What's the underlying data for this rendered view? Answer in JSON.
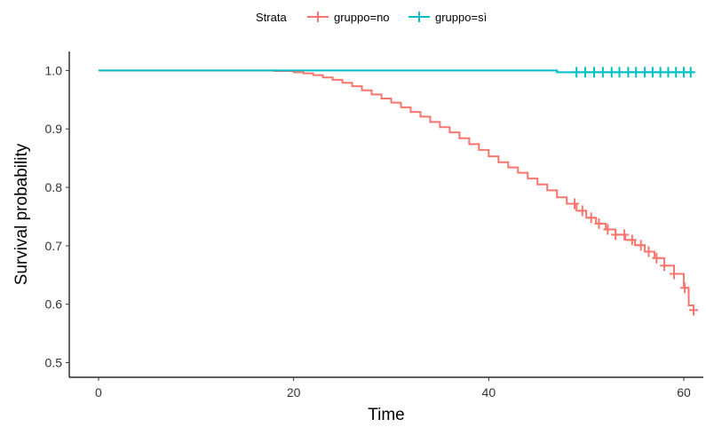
{
  "chart_data": {
    "type": "line",
    "title": "",
    "xlabel": "Time",
    "ylabel": "Survival probability",
    "xlim": [
      -3,
      62
    ],
    "ylim": [
      0.475,
      1.0325
    ],
    "x_ticks": [
      0,
      20,
      40,
      60
    ],
    "y_ticks": [
      0.5,
      0.6,
      0.7,
      0.8,
      0.9,
      1.0
    ],
    "y_tick_labels": [
      "0.5",
      "0.6",
      "0.7",
      "0.8",
      "0.9",
      "1.0"
    ],
    "grid": false,
    "legend": {
      "title": "Strata",
      "position": "top"
    },
    "series": [
      {
        "name": "gruppo=no",
        "color": "#F8766D",
        "step_points": [
          [
            0,
            1.0
          ],
          [
            18,
            1.0
          ],
          [
            18,
            0.999
          ],
          [
            20,
            0.997
          ],
          [
            21,
            0.995
          ],
          [
            22,
            0.992
          ],
          [
            23,
            0.988
          ],
          [
            24,
            0.984
          ],
          [
            25,
            0.979
          ],
          [
            26,
            0.973
          ],
          [
            27,
            0.966
          ],
          [
            28,
            0.959
          ],
          [
            29,
            0.952
          ],
          [
            30,
            0.945
          ],
          [
            31,
            0.937
          ],
          [
            32,
            0.929
          ],
          [
            33,
            0.921
          ],
          [
            34,
            0.912
          ],
          [
            35,
            0.903
          ],
          [
            36,
            0.894
          ],
          [
            37,
            0.884
          ],
          [
            38,
            0.874
          ],
          [
            39,
            0.864
          ],
          [
            40,
            0.853
          ],
          [
            41,
            0.843
          ],
          [
            42,
            0.834
          ],
          [
            43,
            0.825
          ],
          [
            44,
            0.815
          ],
          [
            45,
            0.805
          ],
          [
            46,
            0.795
          ],
          [
            47,
            0.783
          ],
          [
            48,
            0.772
          ],
          [
            49,
            0.76
          ],
          [
            50,
            0.748
          ],
          [
            51,
            0.738
          ],
          [
            52,
            0.728
          ],
          [
            53,
            0.719
          ],
          [
            54,
            0.71
          ],
          [
            55,
            0.701
          ],
          [
            56,
            0.69
          ],
          [
            57,
            0.679
          ],
          [
            58,
            0.666
          ],
          [
            59,
            0.652
          ],
          [
            60,
            0.628
          ],
          [
            60.5,
            0.598
          ],
          [
            61,
            0.59
          ]
        ],
        "censor_times": [
          48.8,
          49.6,
          50.5,
          51.3,
          52.2,
          53.0,
          53.9,
          54.7,
          55.6,
          56.4,
          57.2,
          58.0,
          59.0,
          60.1,
          61.0
        ]
      },
      {
        "name": "gruppo=sì",
        "color": "#00BFC4",
        "step_points": [
          [
            0,
            1.0
          ],
          [
            47,
            1.0
          ],
          [
            47,
            0.997
          ],
          [
            61,
            0.997
          ]
        ],
        "censor_times": [
          49.0,
          49.9,
          50.8,
          51.7,
          52.6,
          53.4,
          54.3,
          55.1,
          56.0,
          56.8,
          57.6,
          58.4,
          59.2,
          60.0,
          60.7
        ]
      }
    ]
  }
}
